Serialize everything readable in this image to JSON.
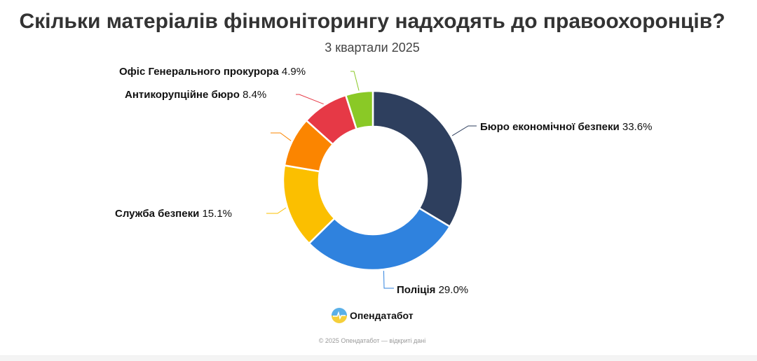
{
  "title": "Скільки матеріалів фінмоніторингу надходять до правоохоронців?",
  "subtitle": "3 квартали 2025",
  "chart_data": {
    "type": "pie",
    "variant": "donut",
    "slices": [
      {
        "label": "Бюро економічної безпеки",
        "value": 33.6,
        "value_label": "33.6%",
        "color": "#2e3f5e"
      },
      {
        "label": "Поліція",
        "value": 29.0,
        "value_label": "29.0%",
        "color": "#2f82de"
      },
      {
        "label": "Служба безпеки",
        "value": 15.1,
        "value_label": "15.1%",
        "color": "#fbbf00"
      },
      {
        "label": "",
        "value": 9.0,
        "value_label": "",
        "color": "#fb8500"
      },
      {
        "label": "Антикорупційне бюро",
        "value": 8.4,
        "value_label": "8.4%",
        "color": "#e63946"
      },
      {
        "label": "Офіс Генерального прокурора",
        "value": 4.9,
        "value_label": "4.9%",
        "color": "#8ac926"
      }
    ]
  },
  "logo": {
    "text": "Опендатабот"
  },
  "footer": "© 2025 Опендатабот — відкриті дані"
}
